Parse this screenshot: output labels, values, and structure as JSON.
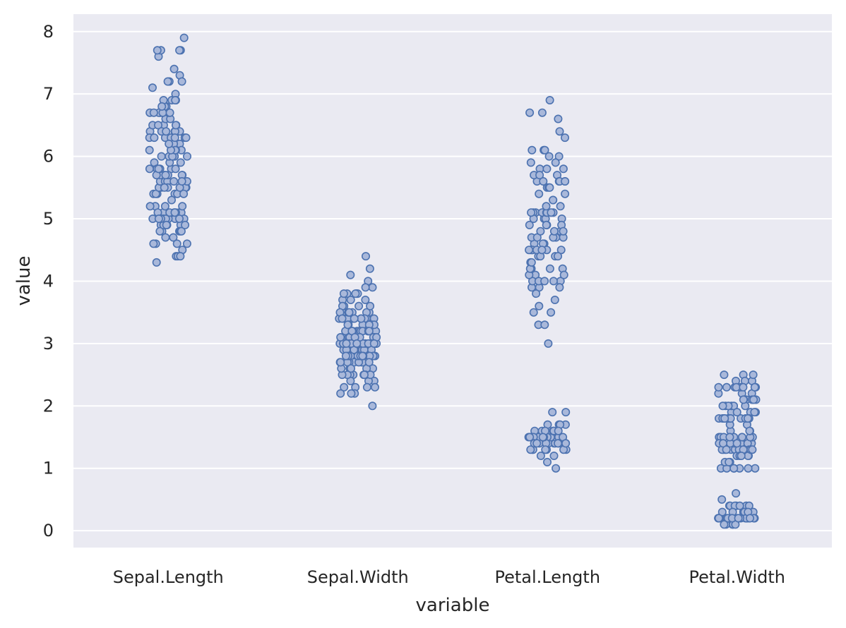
{
  "chart_data": {
    "type": "strip",
    "xlabel": "variable",
    "ylabel": "value",
    "categories": [
      "Sepal.Length",
      "Sepal.Width",
      "Petal.Length",
      "Petal.Width"
    ],
    "yticks": [
      0,
      1,
      2,
      3,
      4,
      5,
      6,
      7,
      8
    ],
    "ylim": [
      -0.27,
      8.28
    ],
    "grid": true,
    "colors": {
      "background": "#eaeaf2",
      "marker_fill": "#a9b8da",
      "marker_edge": "#4c72b0",
      "grid": "#ffffff"
    },
    "series": [
      {
        "values": [
          5.1,
          4.9,
          4.7,
          4.6,
          5.0,
          5.4,
          4.6,
          5.0,
          4.4,
          4.9,
          5.4,
          4.8,
          4.8,
          4.3,
          5.8,
          5.7,
          5.4,
          5.1,
          5.7,
          5.1,
          5.4,
          5.1,
          4.6,
          5.1,
          4.8,
          5.0,
          5.0,
          5.2,
          5.2,
          4.7,
          4.8,
          5.4,
          5.2,
          5.5,
          4.9,
          5.0,
          5.5,
          4.9,
          4.4,
          5.1,
          5.0,
          4.5,
          4.4,
          5.0,
          5.1,
          4.8,
          5.1,
          4.6,
          5.3,
          5.0,
          7.0,
          6.4,
          6.9,
          5.5,
          6.5,
          5.7,
          6.3,
          4.9,
          6.6,
          5.2,
          5.0,
          5.9,
          6.0,
          6.1,
          5.6,
          6.7,
          5.6,
          5.8,
          6.2,
          5.6,
          5.9,
          6.1,
          6.3,
          6.1,
          6.4,
          6.6,
          6.8,
          6.7,
          6.0,
          5.7,
          5.5,
          5.5,
          5.8,
          6.0,
          5.4,
          6.0,
          6.7,
          6.3,
          5.6,
          5.5,
          5.5,
          6.1,
          5.8,
          5.0,
          5.6,
          5.7,
          5.7,
          6.2,
          5.1,
          5.7,
          6.3,
          5.8,
          7.1,
          6.3,
          6.5,
          7.6,
          4.9,
          7.3,
          6.7,
          7.2,
          6.5,
          6.4,
          6.8,
          5.7,
          5.8,
          6.4,
          6.5,
          7.7,
          7.7,
          6.0,
          6.9,
          5.6,
          7.7,
          6.3,
          6.7,
          7.2,
          6.2,
          6.1,
          6.4,
          7.2,
          7.4,
          7.9,
          6.4,
          6.3,
          6.1,
          7.7,
          6.3,
          6.4,
          6.0,
          6.9,
          6.7,
          6.9,
          5.8,
          6.8,
          6.7,
          6.7,
          6.3,
          6.5,
          6.2,
          5.9
        ]
      },
      {
        "values": [
          3.5,
          3.0,
          3.2,
          3.1,
          3.6,
          3.9,
          3.4,
          3.4,
          2.9,
          3.1,
          3.7,
          3.4,
          3.0,
          3.0,
          4.0,
          4.4,
          3.9,
          3.5,
          3.8,
          3.8,
          3.4,
          3.7,
          3.6,
          3.3,
          3.4,
          3.0,
          3.4,
          3.5,
          3.4,
          3.2,
          3.1,
          3.4,
          4.1,
          4.2,
          3.1,
          3.2,
          3.5,
          3.6,
          3.0,
          3.4,
          3.5,
          2.3,
          3.2,
          3.5,
          3.8,
          3.0,
          3.8,
          3.2,
          3.7,
          3.3,
          3.2,
          3.2,
          3.1,
          2.3,
          2.8,
          2.8,
          3.3,
          2.4,
          2.9,
          2.7,
          2.0,
          3.0,
          2.2,
          2.9,
          2.9,
          3.1,
          3.0,
          2.7,
          2.2,
          2.5,
          3.2,
          2.8,
          2.5,
          2.8,
          2.9,
          3.0,
          2.8,
          3.0,
          2.9,
          2.6,
          2.4,
          2.4,
          2.7,
          2.7,
          3.0,
          3.4,
          3.1,
          2.3,
          3.0,
          2.5,
          2.6,
          3.0,
          2.6,
          2.3,
          2.7,
          3.0,
          2.9,
          2.9,
          2.5,
          2.8,
          3.3,
          2.7,
          3.0,
          2.9,
          3.0,
          3.0,
          2.5,
          2.9,
          2.5,
          3.6,
          3.2,
          2.7,
          3.0,
          2.5,
          2.8,
          3.2,
          3.0,
          3.8,
          2.6,
          2.2,
          3.2,
          2.8,
          2.8,
          2.7,
          3.3,
          3.2,
          2.8,
          3.0,
          2.8,
          3.0,
          2.8,
          3.8,
          2.8,
          2.8,
          2.6,
          3.0,
          3.4,
          3.1,
          3.0,
          3.1,
          3.1,
          3.1,
          2.7,
          3.2,
          3.3,
          3.0,
          2.5,
          3.0,
          3.4,
          3.0
        ]
      },
      {
        "values": [
          1.4,
          1.4,
          1.3,
          1.5,
          1.4,
          1.7,
          1.4,
          1.5,
          1.4,
          1.5,
          1.5,
          1.6,
          1.4,
          1.1,
          1.2,
          1.5,
          1.3,
          1.4,
          1.7,
          1.5,
          1.7,
          1.5,
          1.0,
          1.7,
          1.9,
          1.6,
          1.6,
          1.5,
          1.4,
          1.6,
          1.6,
          1.5,
          1.5,
          1.4,
          1.5,
          1.2,
          1.3,
          1.4,
          1.3,
          1.5,
          1.3,
          1.3,
          1.3,
          1.6,
          1.9,
          1.4,
          1.6,
          1.4,
          1.5,
          1.4,
          4.7,
          4.5,
          4.9,
          4.0,
          4.6,
          4.5,
          4.7,
          3.3,
          4.6,
          3.9,
          3.5,
          4.2,
          4.0,
          4.7,
          3.6,
          4.4,
          4.5,
          4.1,
          4.5,
          3.9,
          4.8,
          4.0,
          4.9,
          4.7,
          4.3,
          4.4,
          4.8,
          5.0,
          4.5,
          3.5,
          3.8,
          3.7,
          3.9,
          5.1,
          4.5,
          4.5,
          4.7,
          4.4,
          4.1,
          4.0,
          4.4,
          4.6,
          4.0,
          3.3,
          4.2,
          4.2,
          4.2,
          4.3,
          3.0,
          4.1,
          6.0,
          5.1,
          5.9,
          5.6,
          5.8,
          6.6,
          4.5,
          6.3,
          5.8,
          6.1,
          5.1,
          5.3,
          5.5,
          5.0,
          5.1,
          5.3,
          5.5,
          6.7,
          6.9,
          5.0,
          5.7,
          4.9,
          6.7,
          4.9,
          5.7,
          6.0,
          4.8,
          4.9,
          5.6,
          5.8,
          6.1,
          6.4,
          5.6,
          5.1,
          5.6,
          6.1,
          5.6,
          5.5,
          4.8,
          5.4,
          5.6,
          5.1,
          5.1,
          5.9,
          5.7,
          5.2,
          5.0,
          5.2,
          5.4,
          5.1
        ]
      },
      {
        "values": [
          0.2,
          0.2,
          0.2,
          0.2,
          0.2,
          0.4,
          0.3,
          0.2,
          0.2,
          0.1,
          0.2,
          0.2,
          0.1,
          0.1,
          0.2,
          0.4,
          0.4,
          0.3,
          0.3,
          0.3,
          0.2,
          0.4,
          0.2,
          0.5,
          0.2,
          0.2,
          0.4,
          0.2,
          0.2,
          0.2,
          0.2,
          0.4,
          0.1,
          0.2,
          0.2,
          0.2,
          0.2,
          0.1,
          0.2,
          0.2,
          0.3,
          0.3,
          0.2,
          0.6,
          0.4,
          0.3,
          0.2,
          0.2,
          0.2,
          0.2,
          1.4,
          1.5,
          1.5,
          1.3,
          1.5,
          1.3,
          1.6,
          1.0,
          1.3,
          1.4,
          1.0,
          1.5,
          1.0,
          1.4,
          1.3,
          1.4,
          1.5,
          1.0,
          1.5,
          1.1,
          1.8,
          1.3,
          1.5,
          1.2,
          1.3,
          1.4,
          1.4,
          1.7,
          1.5,
          1.0,
          1.1,
          1.0,
          1.2,
          1.6,
          1.5,
          1.6,
          1.5,
          1.3,
          1.3,
          1.3,
          1.2,
          1.4,
          1.2,
          1.0,
          1.3,
          1.2,
          1.3,
          1.3,
          1.1,
          1.3,
          2.5,
          1.9,
          2.1,
          1.8,
          2.2,
          2.1,
          1.7,
          1.8,
          1.8,
          2.5,
          2.0,
          1.9,
          2.1,
          2.0,
          2.4,
          2.3,
          1.8,
          2.2,
          2.3,
          1.5,
          2.3,
          2.0,
          2.0,
          1.8,
          2.1,
          1.8,
          1.8,
          1.8,
          2.1,
          1.6,
          1.9,
          2.0,
          2.2,
          1.5,
          1.4,
          2.3,
          2.4,
          1.8,
          1.8,
          2.1,
          2.4,
          2.3,
          1.9,
          2.3,
          2.5,
          2.3,
          1.9,
          2.0,
          2.3,
          1.8
        ]
      }
    ]
  }
}
